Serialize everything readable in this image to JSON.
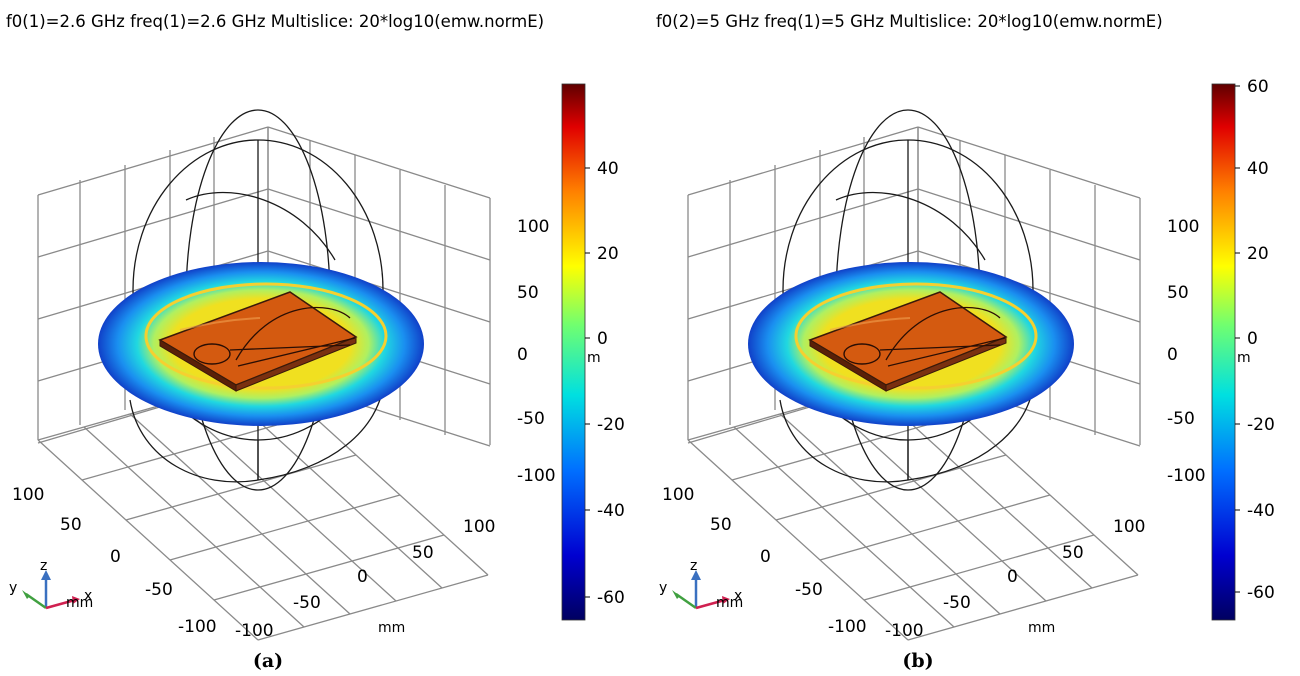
{
  "panels": [
    {
      "title": "f0(1)=2.6 GHz freq(1)=2.6 GHz  Multislice: 20*log10(emw.normE)",
      "caption": "(a)",
      "colorbar": {
        "ticks": [
          "40",
          "20",
          "0",
          "-20",
          "-40",
          "-60"
        ],
        "unit": "m",
        "top_tick": ""
      },
      "z_ticks": [
        "100",
        "50",
        "0",
        "-50",
        "-100"
      ],
      "y_ticks": [
        "100",
        "50",
        "0",
        "-50",
        "-100"
      ],
      "x_ticks": [
        "-100",
        "-50",
        "0",
        "50",
        "100"
      ],
      "axis_unit": "mm",
      "triad": {
        "z": "z",
        "y": "y",
        "x": "x",
        "unit": "mm"
      }
    },
    {
      "title": "f0(2)=5 GHz freq(1)=5 GHz  Multislice: 20*log10(emw.normE)",
      "caption": "(b)",
      "colorbar": {
        "ticks": [
          "60",
          "40",
          "20",
          "0",
          "-20",
          "-40",
          "-60"
        ],
        "unit": "m",
        "top_tick": "60"
      },
      "z_ticks": [
        "100",
        "50",
        "0",
        "-50",
        "-100"
      ],
      "y_ticks": [
        "100",
        "50",
        "0",
        "-50",
        "-100"
      ],
      "x_ticks": [
        "-100",
        "-50",
        "0",
        "50",
        "100"
      ],
      "axis_unit": "mm",
      "triad": {
        "z": "z",
        "y": "y",
        "x": "x",
        "unit": "mm"
      }
    }
  ],
  "colors": {
    "grid": "#8a8a8a",
    "wire": "#1a1a1a",
    "patch": "#d45a10",
    "ring_inner": "#e8d020",
    "ring_outer": "#1060d8"
  }
}
